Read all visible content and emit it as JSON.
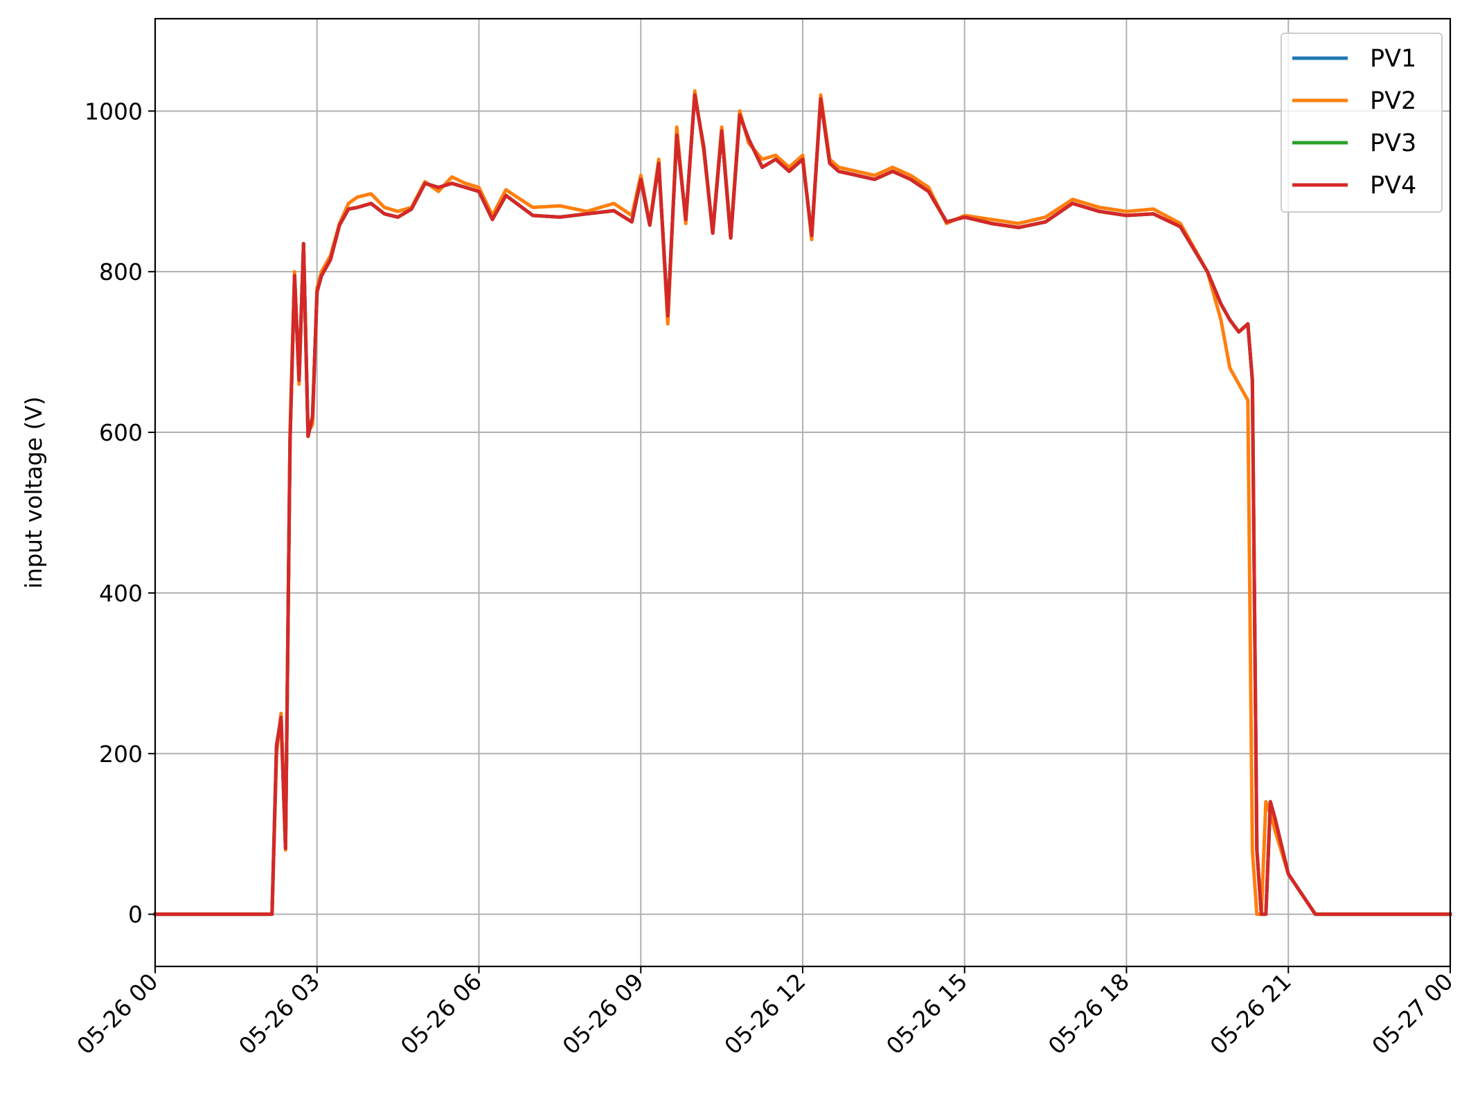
{
  "chart_data": {
    "type": "line",
    "title": "",
    "xlabel": "",
    "ylabel": "input voltage (V)",
    "x_unit": "datetime",
    "xlim": [
      "2023-05-26 00:00",
      "2023-05-27 00:00"
    ],
    "ylim": [
      -65,
      1115
    ],
    "x_ticks": [
      "2023-05-26 00:00",
      "2023-05-26 03:00",
      "2023-05-26 06:00",
      "2023-05-26 09:00",
      "2023-05-26 12:00",
      "2023-05-26 15:00",
      "2023-05-26 18:00",
      "2023-05-26 21:00",
      "2023-05-27 00:00"
    ],
    "x_tick_labels": [
      "05-26 00",
      "05-26 03",
      "05-26 06",
      "05-26 09",
      "05-26 12",
      "05-26 15",
      "05-26 18",
      "05-26 21",
      "05-27 00"
    ],
    "y_ticks": [
      0,
      200,
      400,
      600,
      800,
      1000
    ],
    "y_tick_labels": [
      "0",
      "200",
      "400",
      "600",
      "800",
      "1000"
    ],
    "grid": true,
    "legend_position": "top-right",
    "series": [
      {
        "name": "PV1",
        "color": "#1f77b4",
        "data_ref": "PV4"
      },
      {
        "name": "PV2",
        "color": "#ff7f0e",
        "x": [
          "2023-05-26 00:00",
          "2023-05-26 02:10",
          "2023-05-26 02:15",
          "2023-05-26 02:20",
          "2023-05-26 02:25",
          "2023-05-26 02:30",
          "2023-05-26 02:35",
          "2023-05-26 02:40",
          "2023-05-26 02:45",
          "2023-05-26 02:50",
          "2023-05-26 02:55",
          "2023-05-26 03:00",
          "2023-05-26 03:05",
          "2023-05-26 03:15",
          "2023-05-26 03:25",
          "2023-05-26 03:35",
          "2023-05-26 03:45",
          "2023-05-26 04:00",
          "2023-05-26 04:15",
          "2023-05-26 04:30",
          "2023-05-26 04:45",
          "2023-05-26 05:00",
          "2023-05-26 05:15",
          "2023-05-26 05:30",
          "2023-05-26 05:45",
          "2023-05-26 06:00",
          "2023-05-26 06:15",
          "2023-05-26 06:30",
          "2023-05-26 07:00",
          "2023-05-26 07:30",
          "2023-05-26 08:00",
          "2023-05-26 08:30",
          "2023-05-26 08:50",
          "2023-05-26 09:00",
          "2023-05-26 09:10",
          "2023-05-26 09:20",
          "2023-05-26 09:30",
          "2023-05-26 09:40",
          "2023-05-26 09:50",
          "2023-05-26 10:00",
          "2023-05-26 10:10",
          "2023-05-26 10:20",
          "2023-05-26 10:30",
          "2023-05-26 10:40",
          "2023-05-26 10:50",
          "2023-05-26 11:00",
          "2023-05-26 11:15",
          "2023-05-26 11:30",
          "2023-05-26 11:45",
          "2023-05-26 12:00",
          "2023-05-26 12:10",
          "2023-05-26 12:20",
          "2023-05-26 12:30",
          "2023-05-26 12:40",
          "2023-05-26 13:00",
          "2023-05-26 13:20",
          "2023-05-26 13:40",
          "2023-05-26 14:00",
          "2023-05-26 14:20",
          "2023-05-26 14:40",
          "2023-05-26 15:00",
          "2023-05-26 15:30",
          "2023-05-26 16:00",
          "2023-05-26 16:30",
          "2023-05-26 17:00",
          "2023-05-26 17:30",
          "2023-05-26 18:00",
          "2023-05-26 18:30",
          "2023-05-26 19:00",
          "2023-05-26 19:30",
          "2023-05-26 19:45",
          "2023-05-26 19:55",
          "2023-05-26 20:05",
          "2023-05-26 20:15",
          "2023-05-26 20:20",
          "2023-05-26 20:25",
          "2023-05-26 20:30",
          "2023-05-26 20:35",
          "2023-05-26 20:40",
          "2023-05-26 20:45",
          "2023-05-26 21:00",
          "2023-05-26 21:30",
          "2023-05-26 22:00",
          "2023-05-26 22:30",
          "2023-05-27 00:00"
        ],
        "y": [
          0,
          0,
          200,
          250,
          80,
          600,
          800,
          660,
          830,
          600,
          610,
          780,
          800,
          820,
          860,
          885,
          893,
          897,
          880,
          875,
          880,
          912,
          900,
          918,
          910,
          905,
          870,
          902,
          880,
          882,
          875,
          885,
          870,
          920,
          860,
          940,
          735,
          980,
          860,
          1025,
          950,
          850,
          980,
          845,
          1000,
          960,
          940,
          945,
          930,
          945,
          840,
          1020,
          940,
          930,
          925,
          920,
          930,
          920,
          905,
          860,
          870,
          865,
          860,
          868,
          890,
          880,
          875,
          878,
          860,
          800,
          740,
          680,
          660,
          640,
          80,
          0,
          0,
          140,
          125,
          105,
          50,
          0,
          0,
          0,
          0
        ]
      },
      {
        "name": "PV3",
        "color": "#2ca02c",
        "data_ref": "PV4"
      },
      {
        "name": "PV4",
        "color": "#d62728",
        "x": [
          "2023-05-26 00:00",
          "2023-05-26 02:10",
          "2023-05-26 02:15",
          "2023-05-26 02:20",
          "2023-05-26 02:25",
          "2023-05-26 02:30",
          "2023-05-26 02:35",
          "2023-05-26 02:40",
          "2023-05-26 02:45",
          "2023-05-26 02:50",
          "2023-05-26 02:55",
          "2023-05-26 03:00",
          "2023-05-26 03:05",
          "2023-05-26 03:15",
          "2023-05-26 03:25",
          "2023-05-26 03:35",
          "2023-05-26 03:45",
          "2023-05-26 04:00",
          "2023-05-26 04:15",
          "2023-05-26 04:30",
          "2023-05-26 04:45",
          "2023-05-26 05:00",
          "2023-05-26 05:15",
          "2023-05-26 05:30",
          "2023-05-26 05:45",
          "2023-05-26 06:00",
          "2023-05-26 06:15",
          "2023-05-26 06:30",
          "2023-05-26 07:00",
          "2023-05-26 07:30",
          "2023-05-26 08:00",
          "2023-05-26 08:30",
          "2023-05-26 08:50",
          "2023-05-26 09:00",
          "2023-05-26 09:10",
          "2023-05-26 09:20",
          "2023-05-26 09:30",
          "2023-05-26 09:40",
          "2023-05-26 09:50",
          "2023-05-26 10:00",
          "2023-05-26 10:10",
          "2023-05-26 10:20",
          "2023-05-26 10:30",
          "2023-05-26 10:40",
          "2023-05-26 10:50",
          "2023-05-26 11:00",
          "2023-05-26 11:15",
          "2023-05-26 11:30",
          "2023-05-26 11:45",
          "2023-05-26 12:00",
          "2023-05-26 12:10",
          "2023-05-26 12:20",
          "2023-05-26 12:30",
          "2023-05-26 12:40",
          "2023-05-26 13:00",
          "2023-05-26 13:20",
          "2023-05-26 13:40",
          "2023-05-26 14:00",
          "2023-05-26 14:20",
          "2023-05-26 14:40",
          "2023-05-26 15:00",
          "2023-05-26 15:30",
          "2023-05-26 16:00",
          "2023-05-26 16:30",
          "2023-05-26 17:00",
          "2023-05-26 17:30",
          "2023-05-26 18:00",
          "2023-05-26 18:30",
          "2023-05-26 19:00",
          "2023-05-26 19:30",
          "2023-05-26 19:45",
          "2023-05-26 19:55",
          "2023-05-26 20:05",
          "2023-05-26 20:15",
          "2023-05-26 20:20",
          "2023-05-26 20:25",
          "2023-05-26 20:30",
          "2023-05-26 20:35",
          "2023-05-26 20:40",
          "2023-05-26 20:45",
          "2023-05-26 21:00",
          "2023-05-26 21:30",
          "2023-05-26 22:00",
          "2023-05-26 22:30",
          "2023-05-27 00:00"
        ],
        "y": [
          0,
          0,
          210,
          245,
          82,
          590,
          795,
          665,
          835,
          595,
          620,
          775,
          795,
          815,
          858,
          878,
          880,
          885,
          872,
          868,
          878,
          910,
          905,
          910,
          905,
          900,
          865,
          895,
          870,
          868,
          872,
          876,
          862,
          915,
          858,
          935,
          745,
          970,
          865,
          1020,
          955,
          848,
          975,
          842,
          995,
          965,
          930,
          940,
          925,
          940,
          845,
          1015,
          935,
          925,
          920,
          915,
          925,
          915,
          900,
          862,
          868,
          860,
          855,
          862,
          885,
          875,
          870,
          872,
          856,
          800,
          760,
          740,
          725,
          735,
          665,
          80,
          0,
          0,
          140,
          120,
          50,
          0,
          0,
          0,
          0
        ]
      }
    ]
  }
}
